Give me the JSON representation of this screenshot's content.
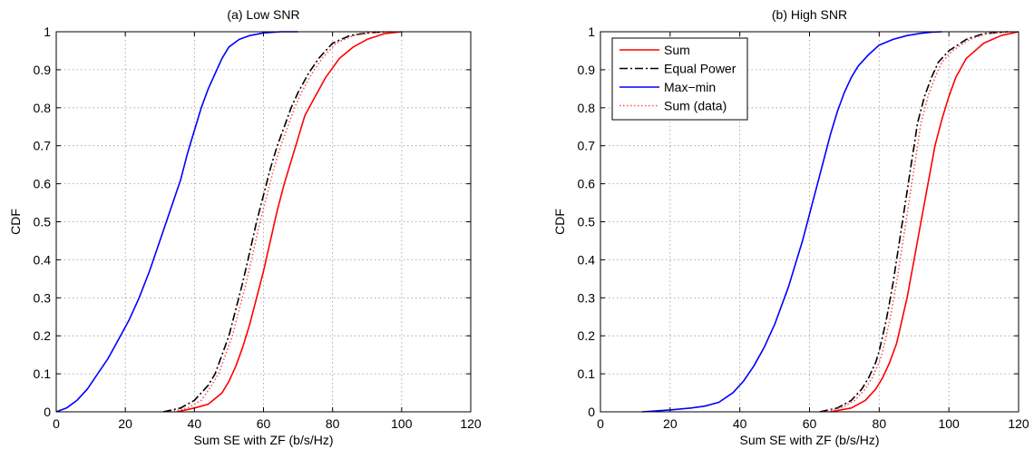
{
  "chart_data": [
    {
      "type": "line",
      "title": "(a) Low SNR",
      "xlabel": "Sum SE with ZF (b/s/Hz)",
      "ylabel": "CDF",
      "xlim": [
        0,
        120
      ],
      "ylim": [
        0,
        1
      ],
      "xticks": [
        "0",
        "20",
        "40",
        "60",
        "80",
        "100",
        "120"
      ],
      "yticks": [
        "0",
        "0.1",
        "0.2",
        "0.3",
        "0.4",
        "0.5",
        "0.6",
        "0.7",
        "0.8",
        "0.9",
        "1"
      ],
      "grid": true,
      "legend": null,
      "series": [
        {
          "key": "sum",
          "color": "#ff0000",
          "style": "solid",
          "x": [
            35,
            40,
            44,
            48,
            50,
            52,
            54,
            56,
            58,
            60,
            62,
            64,
            66,
            68,
            70,
            72,
            75,
            78,
            82,
            86,
            90,
            95,
            100
          ],
          "y": [
            0.0,
            0.01,
            0.02,
            0.05,
            0.08,
            0.12,
            0.17,
            0.23,
            0.3,
            0.37,
            0.45,
            0.53,
            0.6,
            0.66,
            0.72,
            0.78,
            0.83,
            0.88,
            0.93,
            0.96,
            0.98,
            0.995,
            1.0
          ]
        },
        {
          "key": "equal_power",
          "color": "#000000",
          "style": "dashdot",
          "x": [
            31,
            36,
            40,
            44,
            46,
            48,
            50,
            52,
            54,
            56,
            58,
            60,
            62,
            64,
            66,
            68,
            70,
            73,
            76,
            80,
            85,
            90,
            96
          ],
          "y": [
            0.0,
            0.01,
            0.03,
            0.07,
            0.1,
            0.15,
            0.2,
            0.27,
            0.34,
            0.42,
            0.5,
            0.57,
            0.64,
            0.7,
            0.75,
            0.8,
            0.84,
            0.89,
            0.93,
            0.97,
            0.99,
            0.997,
            1.0
          ]
        },
        {
          "key": "max_min",
          "color": "#0000ff",
          "style": "solid",
          "x": [
            0,
            3,
            6,
            9,
            12,
            15,
            18,
            21,
            24,
            27,
            30,
            33,
            36,
            38,
            40,
            42,
            44,
            46,
            48,
            50,
            53,
            56,
            60,
            65,
            70
          ],
          "y": [
            0.0,
            0.01,
            0.03,
            0.06,
            0.1,
            0.14,
            0.19,
            0.24,
            0.3,
            0.37,
            0.45,
            0.53,
            0.61,
            0.68,
            0.74,
            0.8,
            0.85,
            0.89,
            0.93,
            0.96,
            0.98,
            0.99,
            0.997,
            1.0,
            1.0
          ]
        },
        {
          "key": "sum_data",
          "color": "#ff5050",
          "style": "dotted",
          "x": [
            33,
            38,
            42,
            45,
            47,
            49,
            51,
            53,
            55,
            57,
            59,
            61,
            63,
            65,
            67,
            69,
            71,
            74,
            77,
            81,
            86,
            91,
            97
          ],
          "y": [
            0.0,
            0.01,
            0.03,
            0.07,
            0.1,
            0.15,
            0.2,
            0.27,
            0.34,
            0.42,
            0.5,
            0.57,
            0.64,
            0.7,
            0.75,
            0.8,
            0.84,
            0.89,
            0.93,
            0.97,
            0.99,
            0.997,
            1.0
          ]
        }
      ]
    },
    {
      "type": "line",
      "title": "(b) High SNR",
      "xlabel": "Sum SE with ZF (b/s/Hz)",
      "ylabel": "CDF",
      "xlim": [
        0,
        120
      ],
      "ylim": [
        0,
        1
      ],
      "xticks": [
        "0",
        "20",
        "40",
        "60",
        "80",
        "100",
        "120"
      ],
      "yticks": [
        "0",
        "0.1",
        "0.2",
        "0.3",
        "0.4",
        "0.5",
        "0.6",
        "0.7",
        "0.8",
        "0.9",
        "1"
      ],
      "grid": true,
      "legend": {
        "position": "top-left",
        "entries": [
          {
            "key": "sum",
            "label": "Sum"
          },
          {
            "key": "equal_power",
            "label": "Equal Power"
          },
          {
            "key": "max_min",
            "label": "Max−min"
          },
          {
            "key": "sum_data",
            "label": "Sum (data)"
          }
        ]
      },
      "series": [
        {
          "key": "sum",
          "color": "#ff0000",
          "style": "solid",
          "x": [
            66,
            72,
            76,
            79,
            81,
            83,
            85,
            86,
            87,
            88,
            89,
            90,
            91,
            92,
            93,
            94,
            95,
            96,
            98,
            100,
            102,
            105,
            110,
            115,
            120
          ],
          "y": [
            0.0,
            0.01,
            0.03,
            0.06,
            0.09,
            0.13,
            0.18,
            0.22,
            0.26,
            0.3,
            0.35,
            0.4,
            0.45,
            0.5,
            0.55,
            0.6,
            0.65,
            0.7,
            0.77,
            0.83,
            0.88,
            0.93,
            0.97,
            0.99,
            1.0
          ]
        },
        {
          "key": "equal_power",
          "color": "#000000",
          "style": "dashdot",
          "x": [
            63,
            68,
            72,
            75,
            77,
            79,
            80,
            81,
            82,
            83,
            84,
            85,
            86,
            87,
            88,
            89,
            90,
            91,
            93,
            95,
            97,
            100,
            105,
            110,
            117
          ],
          "y": [
            0.0,
            0.01,
            0.03,
            0.06,
            0.09,
            0.13,
            0.16,
            0.2,
            0.24,
            0.29,
            0.34,
            0.4,
            0.46,
            0.52,
            0.58,
            0.64,
            0.7,
            0.76,
            0.83,
            0.88,
            0.92,
            0.95,
            0.98,
            0.995,
            1.0
          ]
        },
        {
          "key": "max_min",
          "color": "#0000ff",
          "style": "solid",
          "x": [
            12,
            20,
            26,
            30,
            34,
            38,
            41,
            44,
            47,
            50,
            52,
            54,
            56,
            58,
            60,
            62,
            64,
            66,
            68,
            70,
            72,
            74,
            77,
            80,
            84,
            88,
            92,
            95,
            98
          ],
          "y": [
            0.0,
            0.005,
            0.01,
            0.015,
            0.025,
            0.05,
            0.08,
            0.12,
            0.17,
            0.23,
            0.28,
            0.33,
            0.39,
            0.45,
            0.52,
            0.59,
            0.66,
            0.73,
            0.79,
            0.84,
            0.88,
            0.91,
            0.94,
            0.965,
            0.98,
            0.99,
            0.996,
            0.999,
            1.0
          ]
        },
        {
          "key": "sum_data",
          "color": "#ff5050",
          "style": "dotted",
          "x": [
            64,
            69,
            73,
            76,
            78,
            80,
            81,
            82,
            83,
            84,
            85,
            86,
            87,
            88,
            89,
            90,
            91,
            92,
            94,
            96,
            98,
            101,
            106,
            111,
            118
          ],
          "y": [
            0.0,
            0.01,
            0.03,
            0.06,
            0.09,
            0.13,
            0.16,
            0.2,
            0.24,
            0.29,
            0.34,
            0.4,
            0.46,
            0.52,
            0.58,
            0.64,
            0.7,
            0.76,
            0.83,
            0.88,
            0.92,
            0.95,
            0.98,
            0.995,
            1.0
          ]
        }
      ]
    }
  ]
}
